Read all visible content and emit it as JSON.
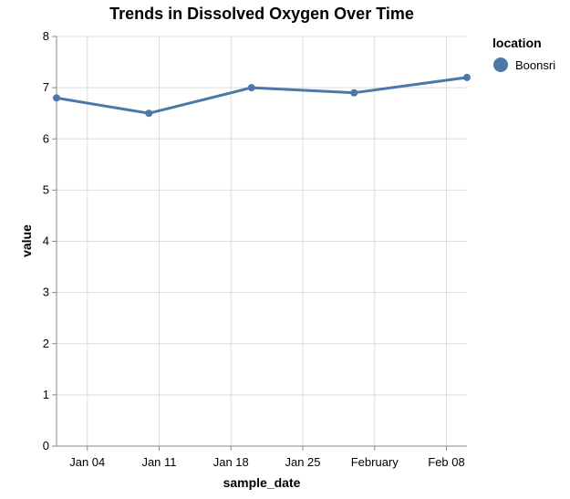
{
  "chart_data": {
    "type": "line",
    "title": "Trends in Dissolved Oxygen Over Time",
    "xlabel": "sample_date",
    "ylabel": "value",
    "ylim": [
      0,
      8
    ],
    "yticks": [
      0,
      1,
      2,
      3,
      4,
      5,
      6,
      7,
      8
    ],
    "xlim": [
      "2024-01-01",
      "2024-02-10"
    ],
    "xticks": [
      {
        "date": "2024-01-04",
        "label": "Jan 04"
      },
      {
        "date": "2024-01-11",
        "label": "Jan 11"
      },
      {
        "date": "2024-01-18",
        "label": "Jan 18"
      },
      {
        "date": "2024-01-25",
        "label": "Jan 25"
      },
      {
        "date": "2024-02-01",
        "label": "February"
      },
      {
        "date": "2024-02-08",
        "label": "Feb 08"
      }
    ],
    "grid": true,
    "legend": {
      "title": "location",
      "position": "right"
    },
    "series": [
      {
        "name": "Boonsri",
        "color": "#4c78a8",
        "x": [
          "2024-01-01",
          "2024-01-10",
          "2024-01-20",
          "2024-01-30",
          "2024-02-10"
        ],
        "values": [
          6.8,
          6.5,
          7.0,
          6.9,
          7.2
        ]
      }
    ]
  }
}
